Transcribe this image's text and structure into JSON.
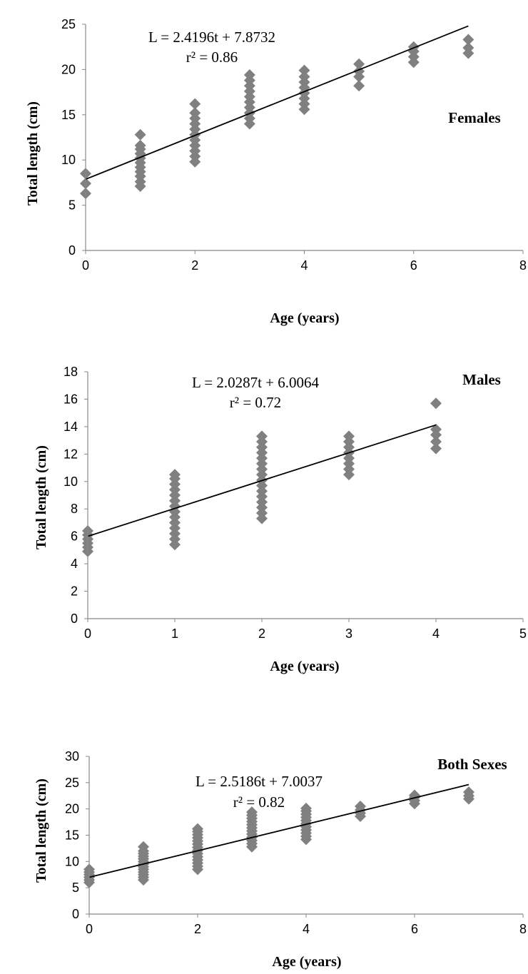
{
  "chart_data": [
    {
      "type": "scatter",
      "label": "Females",
      "xlabel": "Age (years)",
      "ylabel": "Total length (cm)",
      "xlim": [
        0,
        8
      ],
      "ylim": [
        0,
        25
      ],
      "xticks": [
        0,
        2,
        4,
        6,
        8
      ],
      "yticks": [
        0,
        5,
        10,
        15,
        20,
        25
      ],
      "equation": "L = 2.4196t + 7.8732",
      "r2": "r² = 0.86",
      "trendline": {
        "slope": 2.4196,
        "intercept": 7.8732,
        "x_range": [
          0,
          7
        ]
      },
      "marker_color": "#808080",
      "series": [
        {
          "points": [
            [
              0,
              6.3
            ],
            [
              0,
              7.4
            ],
            [
              0,
              8.5
            ],
            [
              1,
              7.1
            ],
            [
              1,
              7.6
            ],
            [
              1,
              8.2
            ],
            [
              1,
              8.7
            ],
            [
              1,
              9.2
            ],
            [
              1,
              9.7
            ],
            [
              1,
              10.2
            ],
            [
              1,
              10.7
            ],
            [
              1,
              11.2
            ],
            [
              1,
              11.6
            ],
            [
              1,
              12.8
            ],
            [
              2,
              9.8
            ],
            [
              2,
              10.4
            ],
            [
              2,
              11.0
            ],
            [
              2,
              11.6
            ],
            [
              2,
              12.2
            ],
            [
              2,
              12.8
            ],
            [
              2,
              13.4
            ],
            [
              2,
              14.0
            ],
            [
              2,
              14.6
            ],
            [
              2,
              15.2
            ],
            [
              2,
              16.2
            ],
            [
              3,
              14.0
            ],
            [
              3,
              14.6
            ],
            [
              3,
              15.2
            ],
            [
              3,
              15.8
            ],
            [
              3,
              16.4
            ],
            [
              3,
              17.0
            ],
            [
              3,
              17.6
            ],
            [
              3,
              18.2
            ],
            [
              3,
              18.8
            ],
            [
              3,
              19.4
            ],
            [
              4,
              15.6
            ],
            [
              4,
              16.2
            ],
            [
              4,
              16.8
            ],
            [
              4,
              17.4
            ],
            [
              4,
              18.0
            ],
            [
              4,
              18.6
            ],
            [
              4,
              19.2
            ],
            [
              4,
              19.9
            ],
            [
              5,
              18.2
            ],
            [
              5,
              19.2
            ],
            [
              5,
              19.8
            ],
            [
              5,
              20.6
            ],
            [
              6,
              20.8
            ],
            [
              6,
              21.4
            ],
            [
              6,
              22.0
            ],
            [
              6,
              22.5
            ],
            [
              7,
              21.8
            ],
            [
              7,
              22.4
            ],
            [
              7,
              23.3
            ]
          ]
        }
      ]
    },
    {
      "type": "scatter",
      "label": "Males",
      "xlabel": "Age (years)",
      "ylabel": "Total length (cm)",
      "xlim": [
        0,
        5
      ],
      "ylim": [
        0,
        18
      ],
      "xticks": [
        0,
        1,
        2,
        3,
        4,
        5
      ],
      "yticks": [
        0,
        2,
        4,
        6,
        8,
        10,
        12,
        14,
        16,
        18
      ],
      "equation": "L = 2.0287t + 6.0064",
      "r2": "r² = 0.72",
      "trendline": {
        "slope": 2.0287,
        "intercept": 6.0064,
        "x_range": [
          0,
          4
        ]
      },
      "marker_color": "#808080",
      "series": [
        {
          "points": [
            [
              0,
              4.9
            ],
            [
              0,
              5.2
            ],
            [
              0,
              5.5
            ],
            [
              0,
              5.8
            ],
            [
              0,
              6.1
            ],
            [
              0,
              6.4
            ],
            [
              1,
              5.4
            ],
            [
              1,
              5.8
            ],
            [
              1,
              6.2
            ],
            [
              1,
              6.6
            ],
            [
              1,
              7.0
            ],
            [
              1,
              7.4
            ],
            [
              1,
              7.8
            ],
            [
              1,
              8.2
            ],
            [
              1,
              8.6
            ],
            [
              1,
              9.0
            ],
            [
              1,
              9.4
            ],
            [
              1,
              9.8
            ],
            [
              1,
              10.2
            ],
            [
              1,
              10.5
            ],
            [
              2,
              7.3
            ],
            [
              2,
              7.7
            ],
            [
              2,
              8.1
            ],
            [
              2,
              8.5
            ],
            [
              2,
              8.9
            ],
            [
              2,
              9.3
            ],
            [
              2,
              9.7
            ],
            [
              2,
              10.1
            ],
            [
              2,
              10.5
            ],
            [
              2,
              10.9
            ],
            [
              2,
              11.3
            ],
            [
              2,
              11.7
            ],
            [
              2,
              12.1
            ],
            [
              2,
              12.5
            ],
            [
              2,
              12.9
            ],
            [
              2,
              13.3
            ],
            [
              3,
              10.5
            ],
            [
              3,
              10.9
            ],
            [
              3,
              11.3
            ],
            [
              3,
              11.7
            ],
            [
              3,
              12.1
            ],
            [
              3,
              12.5
            ],
            [
              3,
              12.9
            ],
            [
              3,
              13.3
            ],
            [
              4,
              12.4
            ],
            [
              4,
              12.9
            ],
            [
              4,
              13.4
            ],
            [
              4,
              13.8
            ],
            [
              4,
              15.7
            ]
          ]
        }
      ]
    },
    {
      "type": "scatter",
      "label": "Both Sexes",
      "xlabel": "Age (years)",
      "ylabel": "Total length (cm)",
      "xlim": [
        0,
        8
      ],
      "ylim": [
        0,
        30
      ],
      "xticks": [
        0,
        2,
        4,
        6,
        8
      ],
      "yticks": [
        0,
        5,
        10,
        15,
        20,
        25,
        30
      ],
      "equation": "L = 2.5186t + 7.0037",
      "r2": "r² = 0.82",
      "trendline": {
        "slope": 2.5186,
        "intercept": 7.0037,
        "x_range": [
          0,
          7
        ]
      },
      "marker_color": "#808080",
      "series": [
        {
          "points": [
            [
              0,
              6.0
            ],
            [
              0,
              6.5
            ],
            [
              0,
              7.0
            ],
            [
              0,
              7.5
            ],
            [
              0,
              8.0
            ],
            [
              0,
              8.5
            ],
            [
              1,
              6.5
            ],
            [
              1,
              7.0
            ],
            [
              1,
              7.5
            ],
            [
              1,
              8.0
            ],
            [
              1,
              8.5
            ],
            [
              1,
              9.0
            ],
            [
              1,
              9.5
            ],
            [
              1,
              10.0
            ],
            [
              1,
              10.5
            ],
            [
              1,
              11.0
            ],
            [
              1,
              11.5
            ],
            [
              1,
              12.0
            ],
            [
              1,
              12.8
            ],
            [
              2,
              8.5
            ],
            [
              2,
              9.1
            ],
            [
              2,
              9.7
            ],
            [
              2,
              10.3
            ],
            [
              2,
              10.9
            ],
            [
              2,
              11.5
            ],
            [
              2,
              12.1
            ],
            [
              2,
              12.7
            ],
            [
              2,
              13.3
            ],
            [
              2,
              13.9
            ],
            [
              2,
              14.5
            ],
            [
              2,
              15.1
            ],
            [
              2,
              15.7
            ],
            [
              2,
              16.2
            ],
            [
              3,
              12.8
            ],
            [
              3,
              13.4
            ],
            [
              3,
              14.0
            ],
            [
              3,
              14.6
            ],
            [
              3,
              15.2
            ],
            [
              3,
              15.8
            ],
            [
              3,
              16.4
            ],
            [
              3,
              17.0
            ],
            [
              3,
              17.6
            ],
            [
              3,
              18.2
            ],
            [
              3,
              18.8
            ],
            [
              3,
              19.4
            ],
            [
              4,
              14.2
            ],
            [
              4,
              14.8
            ],
            [
              4,
              15.4
            ],
            [
              4,
              16.0
            ],
            [
              4,
              16.6
            ],
            [
              4,
              17.2
            ],
            [
              4,
              17.8
            ],
            [
              4,
              18.4
            ],
            [
              4,
              19.0
            ],
            [
              4,
              19.6
            ],
            [
              4,
              20.1
            ],
            [
              5,
              18.6
            ],
            [
              5,
              19.2
            ],
            [
              5,
              19.8
            ],
            [
              5,
              20.5
            ],
            [
              6,
              21.0
            ],
            [
              6,
              21.6
            ],
            [
              6,
              22.2
            ],
            [
              6,
              22.6
            ],
            [
              7,
              21.9
            ],
            [
              7,
              22.5
            ],
            [
              7,
              23.2
            ]
          ]
        }
      ]
    }
  ]
}
